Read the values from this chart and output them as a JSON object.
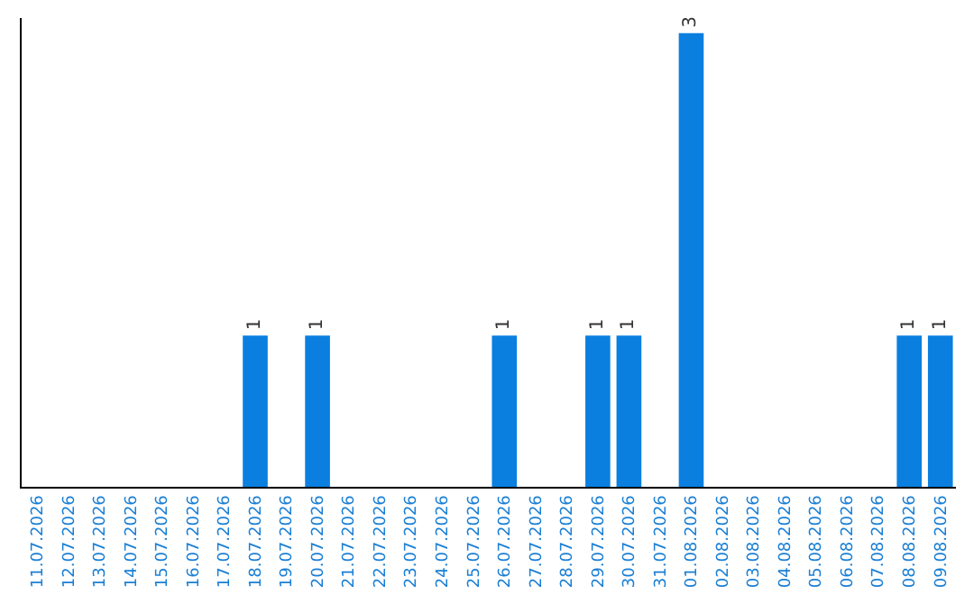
{
  "chart_data": {
    "type": "bar",
    "categories": [
      "11.07.2026",
      "12.07.2026",
      "13.07.2026",
      "14.07.2026",
      "15.07.2026",
      "16.07.2026",
      "17.07.2026",
      "18.07.2026",
      "19.07.2026",
      "20.07.2026",
      "21.07.2026",
      "22.07.2026",
      "23.07.2026",
      "24.07.2026",
      "25.07.2026",
      "26.07.2026",
      "27.07.2026",
      "28.07.2026",
      "29.07.2026",
      "30.07.2026",
      "31.07.2026",
      "01.08.2026",
      "02.08.2026",
      "03.08.2026",
      "04.08.2026",
      "05.08.2026",
      "06.08.2026",
      "07.08.2026",
      "08.08.2026",
      "09.08.2026"
    ],
    "values": [
      0,
      0,
      0,
      0,
      0,
      0,
      0,
      1,
      0,
      1,
      0,
      0,
      0,
      0,
      0,
      1,
      0,
      0,
      1,
      1,
      0,
      3,
      0,
      0,
      0,
      0,
      0,
      0,
      1,
      1
    ],
    "value_labels": [
      null,
      null,
      null,
      null,
      null,
      null,
      null,
      "1",
      null,
      "1",
      null,
      null,
      null,
      null,
      null,
      "1",
      null,
      null,
      "1",
      "1",
      null,
      "3",
      null,
      null,
      null,
      null,
      null,
      null,
      "1",
      "1"
    ],
    "color": "#0a7fe0",
    "ylim": [
      0,
      3.1
    ],
    "tick_labels": "x",
    "legend": false
  }
}
